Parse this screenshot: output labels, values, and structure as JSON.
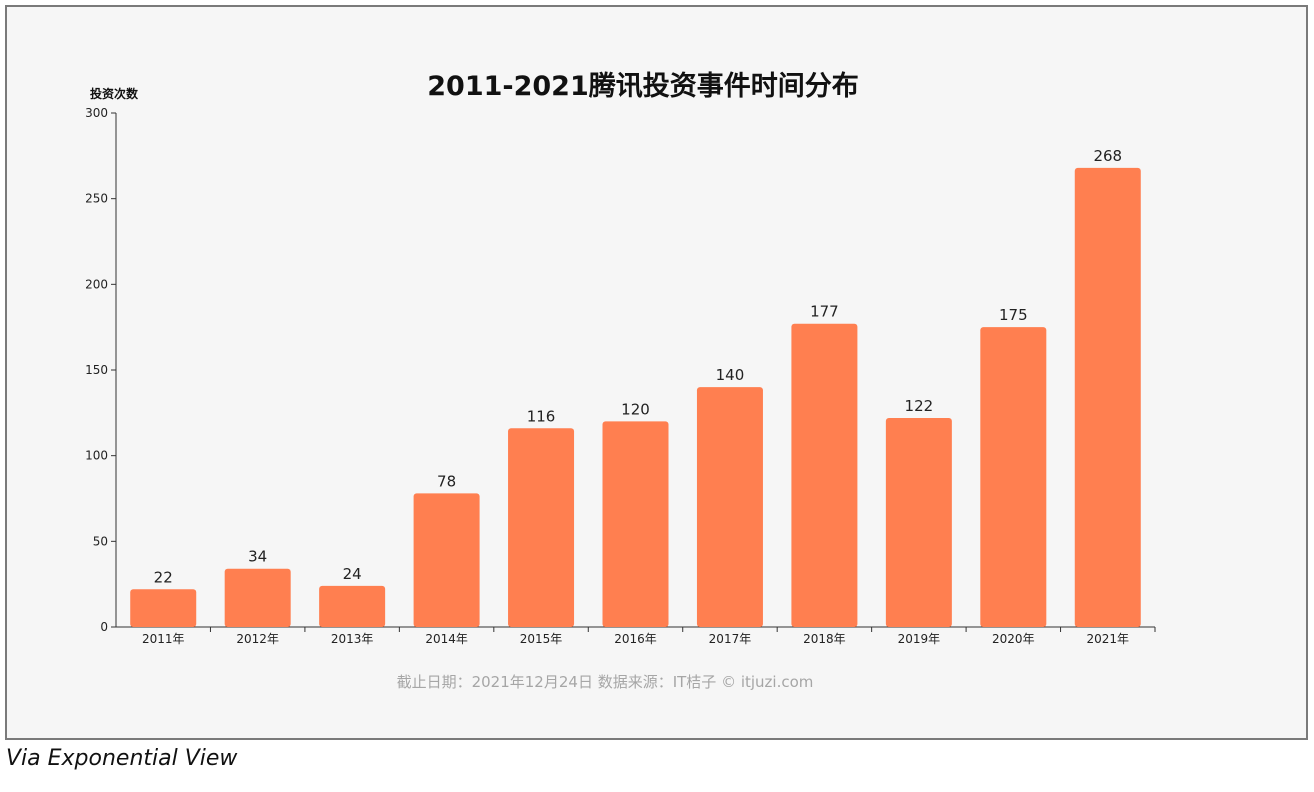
{
  "chart_data": {
    "type": "bar",
    "title": "2011-2021腾讯投资事件时间分布",
    "ylabel": "投资次数",
    "xlabel": "",
    "categories": [
      "2011年",
      "2012年",
      "2013年",
      "2014年",
      "2015年",
      "2016年",
      "2017年",
      "2018年",
      "2019年",
      "2020年",
      "2021年"
    ],
    "values": [
      22,
      34,
      24,
      78,
      116,
      120,
      140,
      177,
      122,
      175,
      268
    ],
    "yticks": [
      0,
      50,
      100,
      150,
      200,
      250,
      300
    ],
    "ylim": [
      0,
      300
    ],
    "grid": false,
    "legend": "none",
    "data_labels": true,
    "bar_color": "#ff7f50"
  },
  "footnote": "截止日期：2021年12月24日    数据来源：IT桔子 © itjuzi.com",
  "caption": "Via Exponential View"
}
